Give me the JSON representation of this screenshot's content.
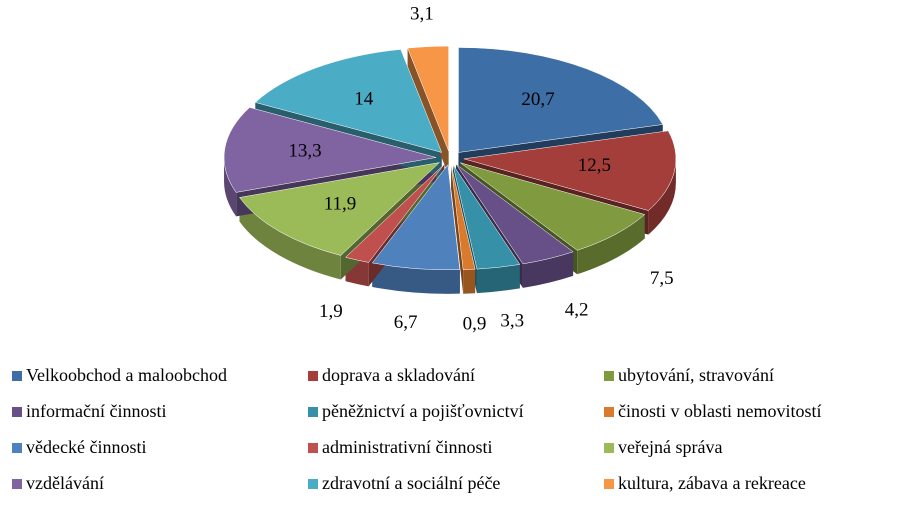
{
  "chart_data": {
    "type": "pie",
    "categories": [
      "Velkoobchod a maloobchod",
      "doprava a skladování",
      "ubytování, stravování",
      "informační činnosti",
      "pěněžnictví a pojišťovnictví",
      "činosti v oblasti nemovitostí",
      "vědecké činnosti",
      "administrativní činnosti",
      "veřejná správa",
      "vzdělávání",
      "zdravotní a sociální péče",
      "kultura, zábava a rekreace"
    ],
    "values": [
      20.7,
      12.5,
      7.5,
      4.2,
      3.3,
      0.9,
      6.7,
      1.9,
      11.9,
      13.3,
      14,
      3.1
    ],
    "value_labels": [
      "20,7",
      "12,5",
      "7,5",
      "4,2",
      "3,3",
      "0,9",
      "6,7",
      "1,9",
      "11,9",
      "13,3",
      "14",
      "3,1"
    ],
    "colors": [
      "#3d6ea5",
      "#a33e3b",
      "#7f9a3f",
      "#674f87",
      "#3590a8",
      "#d97a2c",
      "#4f81bd",
      "#c0504d",
      "#9bbb59",
      "#8064a2",
      "#4bacc6",
      "#f79646"
    ]
  }
}
